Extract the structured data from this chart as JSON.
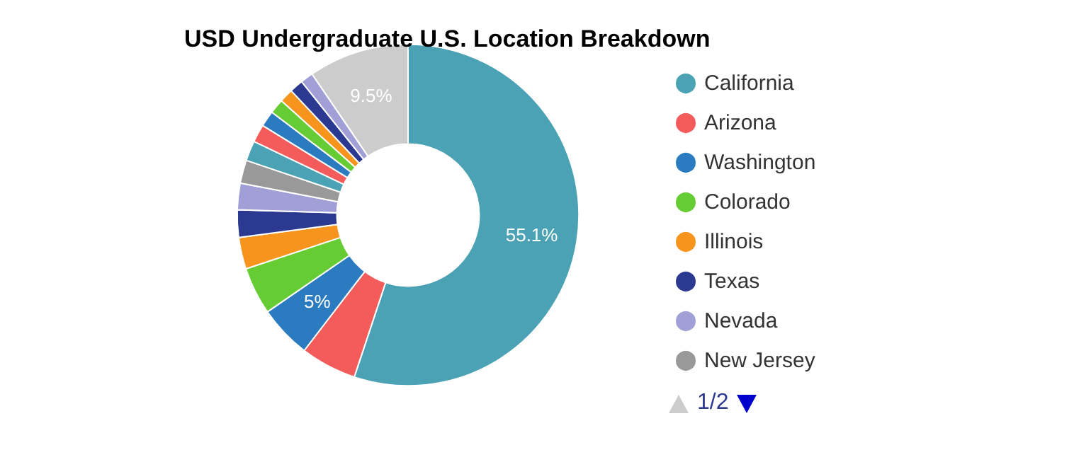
{
  "chart_data": {
    "type": "donut",
    "title": "USD Undergraduate U.S. Location Breakdown",
    "categories": [
      "California",
      "Arizona",
      "Washington",
      "Colorado",
      "Illinois",
      "Texas",
      "Nevada",
      "New Jersey",
      null,
      null,
      null,
      null,
      null,
      null,
      null,
      null
    ],
    "values": [
      55.1,
      5.3,
      5.0,
      4.5,
      3.0,
      2.6,
      2.5,
      2.2,
      1.9,
      1.7,
      1.5,
      1.4,
      1.3,
      1.3,
      1.2,
      9.5
    ],
    "colors": [
      "#4aa2b4",
      "#f45b5b",
      "#2b7bc0",
      "#66cc33",
      "#f7941d",
      "#2b3990",
      "#a09fd6",
      "#999999",
      "#4aa2b4",
      "#f45b5b",
      "#2b7bc0",
      "#66cc33",
      "#f7941d",
      "#2b3990",
      "#a09fd6",
      "#cccccc"
    ],
    "value_labels": [
      "55.1%",
      null,
      "5%",
      null,
      null,
      null,
      null,
      null,
      null,
      null,
      null,
      null,
      null,
      null,
      null,
      "9.5%"
    ],
    "legend": "right",
    "annotations": [
      "1/2"
    ]
  }
}
